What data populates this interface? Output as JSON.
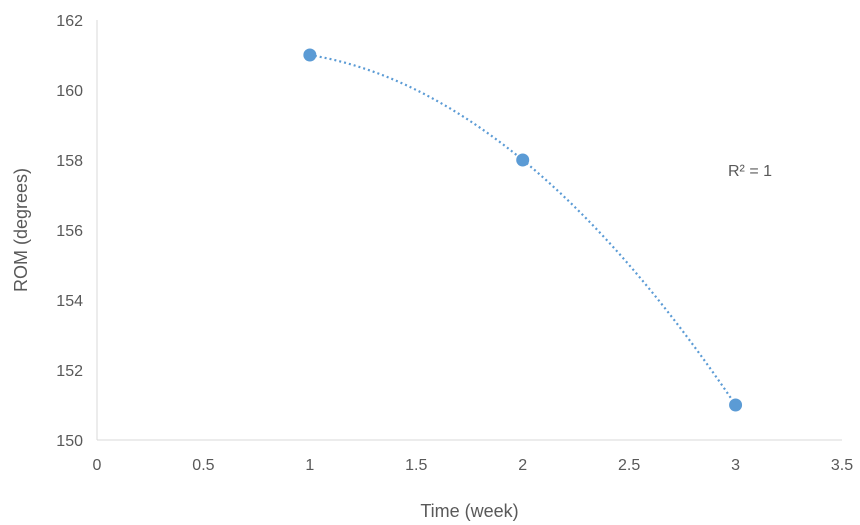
{
  "chart_data": {
    "type": "scatter",
    "title": "",
    "xlabel": "Time (week)",
    "ylabel": "ROM (degrees)",
    "xlim": [
      0,
      3.5
    ],
    "ylim": [
      150,
      162
    ],
    "x_ticks": [
      0,
      0.5,
      1,
      1.5,
      2,
      2.5,
      3,
      3.5
    ],
    "x_tick_labels": [
      "0",
      "0.5",
      "1",
      "1.5",
      "2",
      "2.5",
      "3",
      "3.5"
    ],
    "y_ticks": [
      150,
      152,
      154,
      156,
      158,
      160,
      162
    ],
    "y_tick_labels": [
      "150",
      "152",
      "154",
      "156",
      "158",
      "160",
      "162"
    ],
    "grid": false,
    "series": [
      {
        "x": [
          1,
          2,
          3
        ],
        "y": [
          161,
          158,
          151
        ],
        "color": "#5B9BD5",
        "trendline": "polynomial-2"
      }
    ],
    "annotation": {
      "text": "R² = 1"
    }
  }
}
